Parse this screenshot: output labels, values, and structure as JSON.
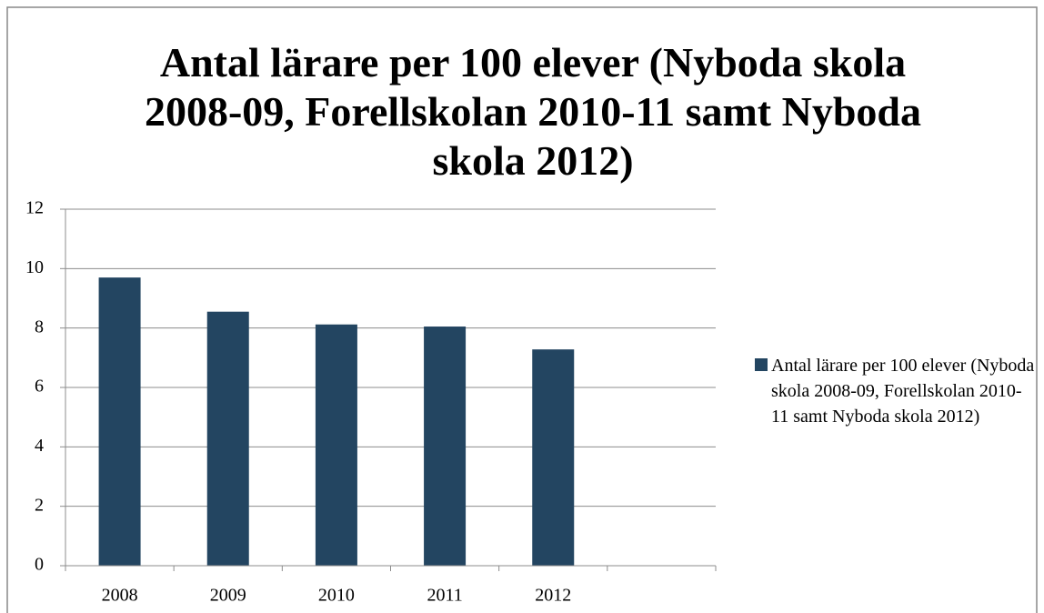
{
  "chart_data": {
    "type": "bar",
    "title": "Antal lärare per 100 elever (Nyboda skola 2008-09, Forellskolan 2010-11 samt Nyboda skola 2012)",
    "categories": [
      "2008",
      "2009",
      "2010",
      "2011",
      "2012",
      null
    ],
    "series": [
      {
        "name": "Antal lärare per 100 elever (Nyboda skola 2008-09, Forellskolan 2010-11 samt Nyboda skola 2012)",
        "color": "#234561",
        "values": [
          9.7,
          8.55,
          8.12,
          8.05,
          7.28,
          null
        ]
      }
    ],
    "ylim": [
      0,
      12
    ],
    "yticks": [
      0,
      2,
      4,
      6,
      8,
      10,
      12
    ],
    "grid": true,
    "legend": "right"
  }
}
